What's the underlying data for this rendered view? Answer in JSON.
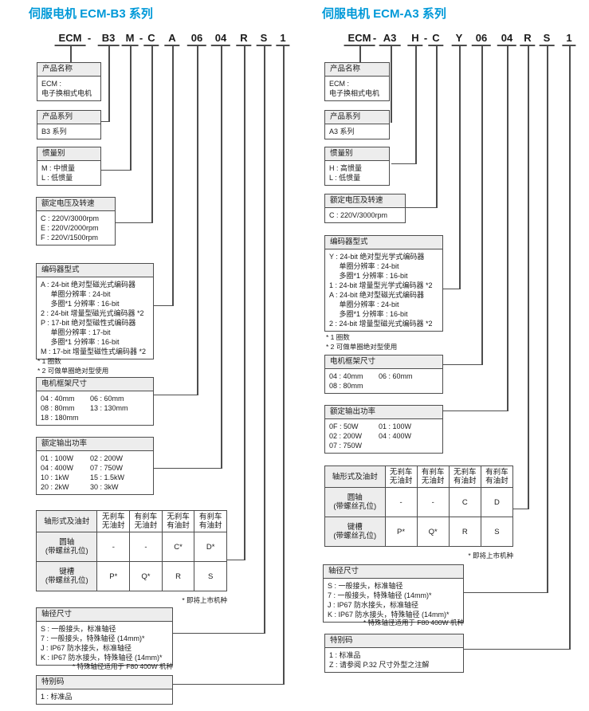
{
  "colors": {
    "accent": "#0099d8",
    "line": "#4d4d4d",
    "header_bg": "#ededed"
  },
  "panels": [
    {
      "title": "伺服电机 ECM-B3 系列",
      "code": [
        "ECM",
        "-",
        "B3",
        "M",
        "-",
        "C",
        "A",
        "06",
        "04",
        "R",
        "S",
        "1"
      ],
      "boxes": {
        "product_name": {
          "header": "产品名称",
          "lines": [
            "ECM :",
            "电子换相式电机"
          ]
        },
        "product_series": {
          "header": "产品系列",
          "lines": [
            "B3 系列"
          ]
        },
        "inertia": {
          "header": "惯量别",
          "lines": [
            "M : 中惯量",
            "L : 低惯量"
          ]
        },
        "voltage_speed": {
          "header": "额定电压及转速",
          "lines": [
            "C : 220V/3000rpm",
            "E : 220V/2000rpm",
            "F : 220V/1500rpm"
          ]
        },
        "encoder": {
          "header": "编码器型式",
          "lines": [
            "A : 24-bit 绝对型磁光式编码器",
            "     单圈分辨率 : 24-bit",
            "     多圈*1 分辨率 : 16-bit",
            "2 : 24-bit 增量型磁光式编码器 *2",
            "P : 17-bit 绝对型磁性式编码器",
            "     单圈分辨率 : 17-bit",
            "     多圈*1 分辨率 : 16-bit",
            "M : 17-bit 增量型磁性式编码器 *2"
          ],
          "footnotes": [
            "* 1 圈数",
            "* 2 可做单圈绝对型使用"
          ]
        },
        "frame_size": {
          "header": "电机框架尺寸",
          "lines": [
            [
              "04 : 40mm",
              "06 : 60mm"
            ],
            [
              "08 : 80mm",
              "13 : 130mm"
            ],
            "18 : 180mm"
          ]
        },
        "rated_power": {
          "header": "额定输出功率",
          "lines": [
            [
              "01 : 100W",
              "02 : 200W"
            ],
            [
              "04 : 400W",
              "07 : 750W"
            ],
            [
              "10 : 1kW",
              "15 : 1.5kW"
            ],
            [
              "20 : 2kW",
              "30 : 3kW"
            ]
          ]
        },
        "shaft_dia": {
          "header": "轴径尺寸",
          "lines": [
            "S : 一般接头，标准轴径",
            "7 : 一般接头，特殊轴径 (14mm)*",
            "J : IP67 防水接头，标准轴径",
            "K : IP67 防水接头，特殊轴径 (14mm)*"
          ],
          "footnote": "* 特殊轴径适用于 F80 400W 机种"
        },
        "special_code": {
          "header": "特别码",
          "lines": [
            "1 : 标准品"
          ]
        }
      },
      "table": {
        "corner": "轴形式及油封",
        "col_headers": [
          "无刹车\n无油封",
          "有刹车\n无油封",
          "无刹车\n有油封",
          "有刹车\n有油封"
        ],
        "rows": [
          {
            "label": "圆轴\n(带螺丝孔位)",
            "cells": [
              "-",
              "-",
              "C*",
              "D*"
            ]
          },
          {
            "label": "键槽\n(带螺丝孔位)",
            "cells": [
              "P*",
              "Q*",
              "R",
              "S"
            ]
          }
        ],
        "note": "* 即将上市机种"
      }
    },
    {
      "title": "伺服电机 ECM-A3 系列",
      "code": [
        "ECM",
        "-",
        "A3",
        "H",
        "-",
        "C",
        "Y",
        "06",
        "04",
        "R",
        "S",
        "1"
      ],
      "boxes": {
        "product_name": {
          "header": "产品名称",
          "lines": [
            "ECM :",
            "电子换相式电机"
          ]
        },
        "product_series": {
          "header": "产品系列",
          "lines": [
            "A3 系列"
          ]
        },
        "inertia": {
          "header": "惯量别",
          "lines": [
            "H : 高惯量",
            "L : 低惯量"
          ]
        },
        "voltage_speed": {
          "header": "额定电压及转速",
          "lines": [
            "C : 220V/3000rpm"
          ]
        },
        "encoder": {
          "header": "编码器型式",
          "lines": [
            "Y : 24-bit 绝对型光学式编码器",
            "     单圈分辨率 : 24-bit",
            "     多圈*1 分辨率 : 16-bit",
            "1 : 24-bit 增量型光学式编码器 *2",
            "A : 24-bit 绝对型磁光式编码器",
            "     单圈分辨率 : 24-bit",
            "     多圈*1 分辨率 : 16-bit",
            "2 : 24-bit 增量型磁光式编码器 *2"
          ],
          "footnotes": [
            "* 1 圈数",
            "* 2 可做单圈绝对型使用"
          ]
        },
        "frame_size": {
          "header": "电机框架尺寸",
          "lines": [
            [
              "04 : 40mm",
              "06 : 60mm"
            ],
            "08 : 80mm"
          ]
        },
        "rated_power": {
          "header": "额定输出功率",
          "lines": [
            [
              "0F : 50W",
              "01 : 100W"
            ],
            [
              "02 : 200W",
              "04 : 400W"
            ],
            "07 : 750W"
          ]
        },
        "shaft_dia": {
          "header": "轴径尺寸",
          "lines": [
            "S : 一般接头，标准轴径",
            "7 : 一般接头，特殊轴径 (14mm)*",
            "J : IP67 防水接头，标准轴径",
            "K : IP67 防水接头，特殊轴径 (14mm)*"
          ],
          "footnote": "* 特殊轴径适用于 F80 400W 机种"
        },
        "special_code": {
          "header": "特别码",
          "lines": [
            "1 : 标准品",
            "Z : 请参阅 P.32 尺寸外型之注解"
          ]
        }
      },
      "table": {
        "corner": "轴形式及油封",
        "col_headers": [
          "无刹车\n无油封",
          "有刹车\n无油封",
          "无刹车\n有油封",
          "有刹车\n有油封"
        ],
        "rows": [
          {
            "label": "圆轴\n(带螺丝孔位)",
            "cells": [
              "-",
              "-",
              "C",
              "D"
            ]
          },
          {
            "label": "键槽\n(带螺丝孔位)",
            "cells": [
              "P*",
              "Q*",
              "R",
              "S"
            ]
          }
        ],
        "note": "* 即将上市机种"
      }
    }
  ]
}
